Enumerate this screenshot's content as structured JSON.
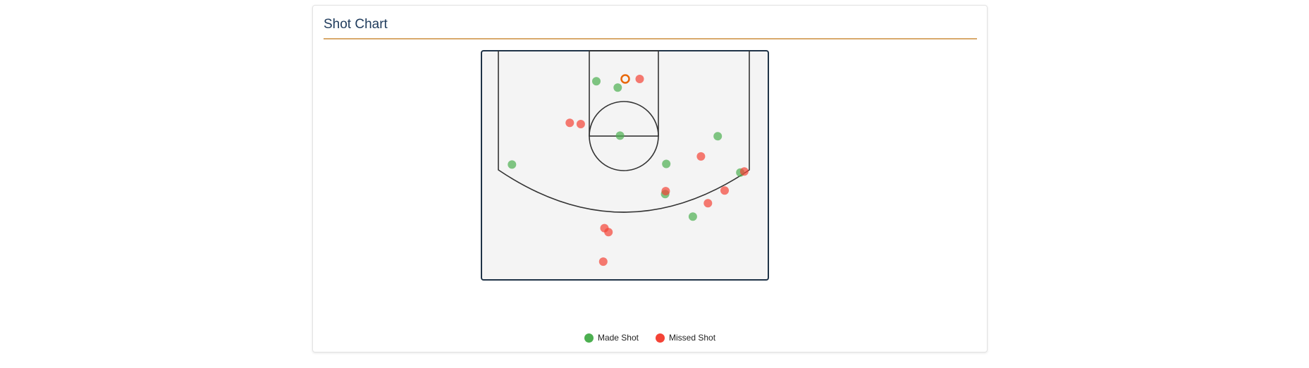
{
  "card": {
    "title": "Shot Chart"
  },
  "legend": [
    {
      "label": "Made Shot",
      "color": "#4caf50"
    },
    {
      "label": "Missed Shot",
      "color": "#f44336"
    }
  ],
  "colors": {
    "court_fill": "#f4f4f4",
    "court_border": "#1f3347",
    "court_lines": "#333333",
    "rim": "#e8680a",
    "made": "#4caf50",
    "missed": "#f44336"
  },
  "chart_data": {
    "type": "scatter",
    "title": "Shot Chart",
    "x_units": "feet from basket (horizontal)",
    "y_units": "feet from baseline",
    "xlim": [
      -25,
      25
    ],
    "ylim": [
      0,
      40
    ],
    "rim": {
      "x": 0,
      "y": 5
    },
    "series": [
      {
        "name": "Made Shot",
        "values": [
          {
            "x": -5.0,
            "y": 5.4
          },
          {
            "x": -1.3,
            "y": 6.5
          },
          {
            "x": -0.9,
            "y": 14.8
          },
          {
            "x": 7.1,
            "y": 19.7
          },
          {
            "x": 16.0,
            "y": 14.9
          },
          {
            "x": 19.9,
            "y": 21.2
          },
          {
            "x": -19.6,
            "y": 19.8
          },
          {
            "x": 6.9,
            "y": 24.9
          },
          {
            "x": 11.7,
            "y": 28.8
          }
        ]
      },
      {
        "name": "Missed Shot",
        "values": [
          {
            "x": 2.5,
            "y": 5.0
          },
          {
            "x": -9.6,
            "y": 12.6
          },
          {
            "x": -7.7,
            "y": 12.8
          },
          {
            "x": 13.1,
            "y": 18.4
          },
          {
            "x": 20.6,
            "y": 21.0
          },
          {
            "x": 7.0,
            "y": 24.4
          },
          {
            "x": 17.2,
            "y": 24.3
          },
          {
            "x": 14.3,
            "y": 26.5
          },
          {
            "x": -3.6,
            "y": 30.8
          },
          {
            "x": -2.9,
            "y": 31.5
          },
          {
            "x": -3.8,
            "y": 36.6
          }
        ]
      }
    ]
  }
}
